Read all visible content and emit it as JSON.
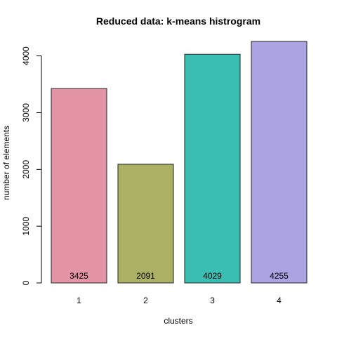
{
  "chart_data": {
    "type": "bar",
    "title": "Reduced data: k-means histrogram",
    "xlabel": "clusters",
    "ylabel": "number of elements",
    "categories": [
      "1",
      "2",
      "3",
      "4"
    ],
    "values": [
      3425,
      2091,
      4029,
      4255
    ],
    "data_labels": [
      "3425",
      "2091",
      "4029",
      "4255"
    ],
    "colors": [
      "#e495a5",
      "#abb065",
      "#39beb1",
      "#aca4e2"
    ],
    "ylim": [
      0,
      4255
    ],
    "yticks": [
      0,
      1000,
      2000,
      3000,
      4000
    ],
    "ytick_labels": [
      "0",
      "1000",
      "2000",
      "3000",
      "4000"
    ],
    "grid": false,
    "legend": "none"
  }
}
